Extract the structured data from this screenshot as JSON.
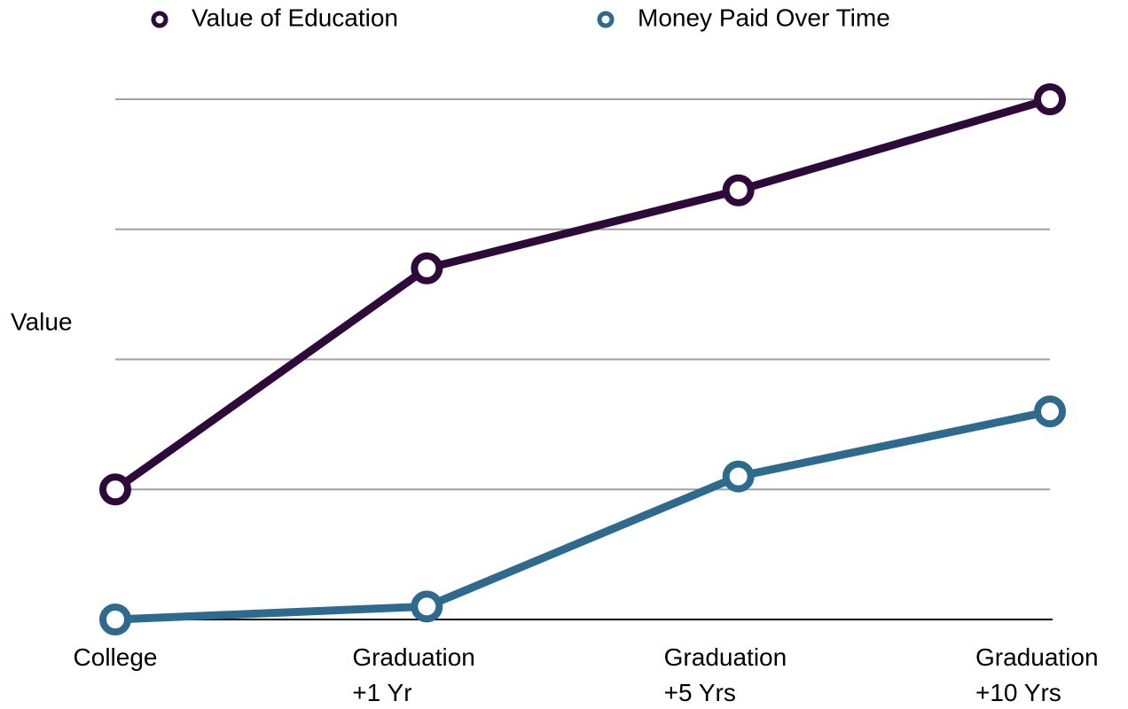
{
  "chart_data": {
    "type": "line",
    "y_label": "Value",
    "categories": [
      "College",
      "Graduation +1 Yr",
      "Graduation +5 Yrs",
      "Graduation +10 Yrs"
    ],
    "series": [
      {
        "name": "Value of Education",
        "color": "#2d0a3a",
        "values": [
          1,
          2.7,
          3.3,
          4
        ]
      },
      {
        "name": "Money Paid Over Time",
        "color": "#2e6a8e",
        "values": [
          0,
          0.1,
          1.1,
          1.6
        ]
      }
    ],
    "ylim": [
      0,
      4
    ],
    "yticks": [
      0,
      1,
      2,
      3,
      4
    ],
    "grid": true,
    "legend": "top"
  }
}
